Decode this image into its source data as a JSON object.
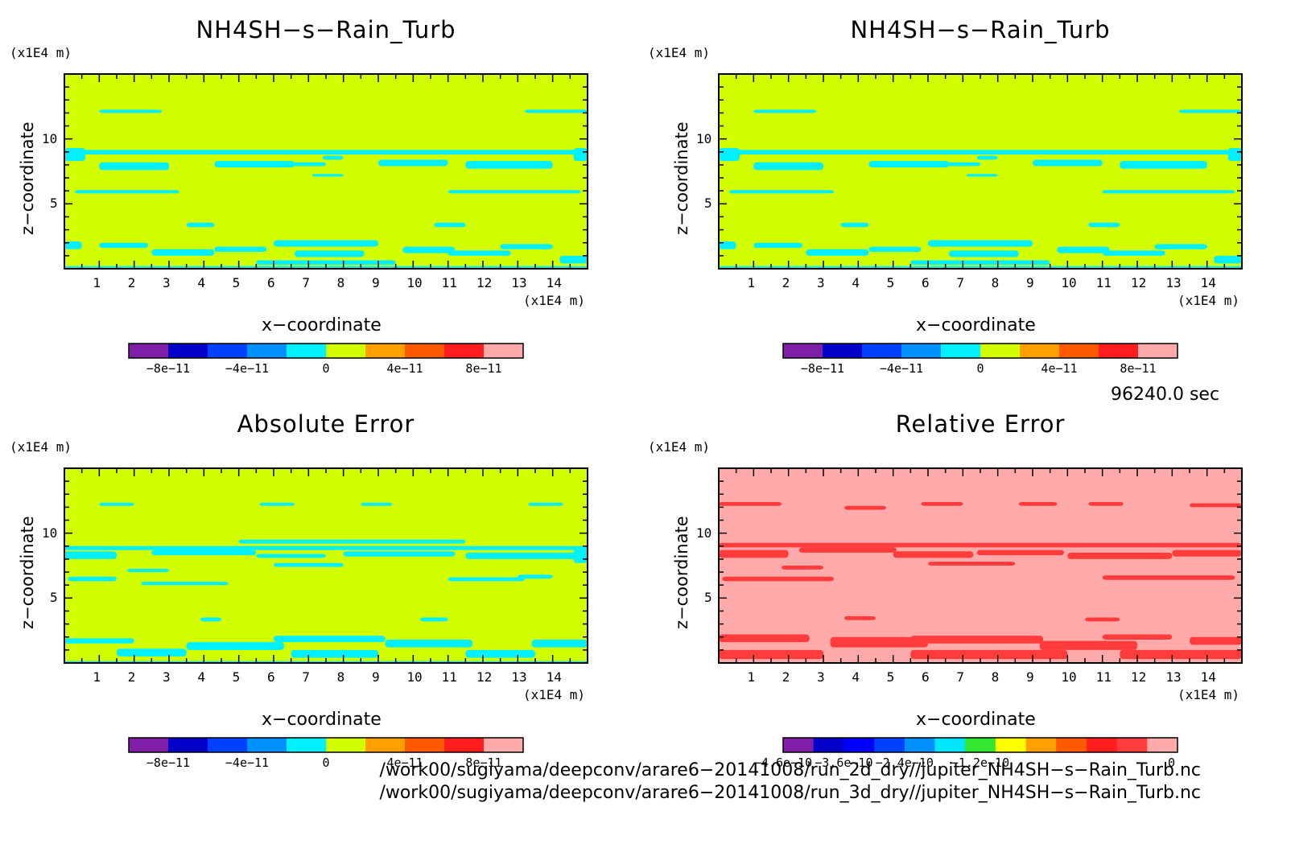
{
  "panels": [
    {
      "title": "NH4SH−s−Rain_Turb",
      "z_unit": "(x1E4 m)",
      "x_unit": "(x1E4 m)",
      "xlabel": "x−coordinate",
      "ylabel": "z−coordinate"
    },
    {
      "title": "NH4SH−s−Rain_Turb",
      "z_unit": "(x1E4 m)",
      "x_unit": "(x1E4 m)",
      "xlabel": "x−coordinate",
      "ylabel": "z−coordinate"
    },
    {
      "title": "Absolute Error",
      "z_unit": "(x1E4 m)",
      "x_unit": "(x1E4 m)",
      "xlabel": "x−coordinate",
      "ylabel": "z−coordinate"
    },
    {
      "title": "Relative Error",
      "z_unit": "(x1E4 m)",
      "x_unit": "(x1E4 m)",
      "xlabel": "x−coordinate",
      "ylabel": "z−coordinate"
    }
  ],
  "time_label": "96240.0 sec",
  "footer": [
    "/work00/sugiyama/deepconv/arare6−20141008/run_2d_dry//jupiter_NH4SH−s−Rain_Turb.nc",
    "/work00/sugiyama/deepconv/arare6−20141008/run_3d_dry//jupiter_NH4SH−s−Rain_Turb.nc"
  ],
  "chart_data": [
    {
      "type": "heatmap",
      "title": "NH4SH−s−Rain_Turb",
      "xlabel": "x−coordinate",
      "ylabel": "z−coordinate",
      "xlim": [
        0,
        15
      ],
      "ylim": [
        0,
        15
      ],
      "x_ticks": [
        1,
        2,
        3,
        4,
        5,
        6,
        7,
        8,
        9,
        10,
        11,
        12,
        13,
        14
      ],
      "y_ticks": [
        5,
        10
      ],
      "colorbar": {
        "colors": [
          "#7f1fa8",
          "#0000c8",
          "#0041ff",
          "#0090ff",
          "#00f0ff",
          "#d2ff00",
          "#ffa000",
          "#ff5a00",
          "#ff1e1e",
          "#ffaaaa"
        ],
        "tick_labels": [
          "−8e−11",
          "−4e−11",
          "0",
          "4e−11",
          "8e−11"
        ]
      },
      "dominant_level": "#d2ff00",
      "secondary_level": "#00f0ff"
    },
    {
      "type": "heatmap",
      "title": "NH4SH−s−Rain_Turb",
      "xlabel": "x−coordinate",
      "ylabel": "z−coordinate",
      "xlim": [
        0,
        15
      ],
      "ylim": [
        0,
        15
      ],
      "x_ticks": [
        1,
        2,
        3,
        4,
        5,
        6,
        7,
        8,
        9,
        10,
        11,
        12,
        13,
        14
      ],
      "y_ticks": [
        5,
        10
      ],
      "colorbar": {
        "colors": [
          "#7f1fa8",
          "#0000c8",
          "#0041ff",
          "#0090ff",
          "#00f0ff",
          "#d2ff00",
          "#ffa000",
          "#ff5a00",
          "#ff1e1e",
          "#ffaaaa"
        ],
        "tick_labels": [
          "−8e−11",
          "−4e−11",
          "0",
          "4e−11",
          "8e−11"
        ]
      },
      "dominant_level": "#d2ff00",
      "secondary_level": "#00f0ff"
    },
    {
      "type": "heatmap",
      "title": "Absolute Error",
      "xlabel": "x−coordinate",
      "ylabel": "z−coordinate",
      "xlim": [
        0,
        15
      ],
      "ylim": [
        0,
        15
      ],
      "x_ticks": [
        1,
        2,
        3,
        4,
        5,
        6,
        7,
        8,
        9,
        10,
        11,
        12,
        13,
        14
      ],
      "y_ticks": [
        5,
        10
      ],
      "colorbar": {
        "colors": [
          "#7f1fa8",
          "#0000c8",
          "#0041ff",
          "#0090ff",
          "#00f0ff",
          "#d2ff00",
          "#ffa000",
          "#ff5a00",
          "#ff1e1e",
          "#ffaaaa"
        ],
        "tick_labels": [
          "−8e−11",
          "−4e−11",
          "0",
          "4e−11",
          "8e−11"
        ]
      },
      "dominant_level": "#d2ff00",
      "secondary_level": "#00f0ff"
    },
    {
      "type": "heatmap",
      "title": "Relative Error",
      "xlabel": "x−coordinate",
      "ylabel": "z−coordinate",
      "xlim": [
        0,
        15
      ],
      "ylim": [
        0,
        15
      ],
      "x_ticks": [
        1,
        2,
        3,
        4,
        5,
        6,
        7,
        8,
        9,
        10,
        11,
        12,
        13,
        14
      ],
      "y_ticks": [
        5,
        10
      ],
      "colorbar": {
        "colors": [
          "#7f1fa8",
          "#0000c8",
          "#0000ff",
          "#0041ff",
          "#0090ff",
          "#00e6ff",
          "#32e632",
          "#ffff00",
          "#ffa000",
          "#ff5a00",
          "#ff1e1e",
          "#ff3c3c",
          "#ffaaaa"
        ],
        "tick_labels": [
          "−4.6e−10",
          "−3.6e−10",
          "−2.4e−10",
          "−1.2e−10",
          "0"
        ]
      },
      "dominant_level": "#ffaaaa",
      "secondary_level": "#ff3c3c"
    }
  ]
}
